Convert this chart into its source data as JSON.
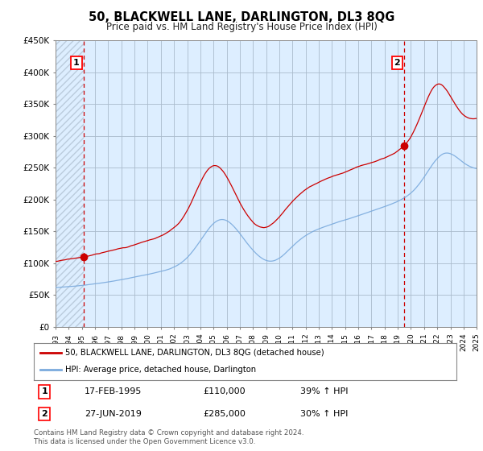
{
  "title": "50, BLACKWELL LANE, DARLINGTON, DL3 8QG",
  "subtitle": "Price paid vs. HM Land Registry's House Price Index (HPI)",
  "ylim": [
    0,
    450000
  ],
  "yticks": [
    0,
    50000,
    100000,
    150000,
    200000,
    250000,
    300000,
    350000,
    400000,
    450000
  ],
  "ytick_labels": [
    "£0",
    "£50K",
    "£100K",
    "£150K",
    "£200K",
    "£250K",
    "£300K",
    "£350K",
    "£400K",
    "£450K"
  ],
  "hpi_color": "#7aaadd",
  "price_color": "#cc0000",
  "dashed_line_color": "#cc0000",
  "point1_year": 1995.12,
  "point2_year": 2019.5,
  "point1_price": 110000,
  "point2_price": 285000,
  "legend_label1": "50, BLACKWELL LANE, DARLINGTON, DL3 8QG (detached house)",
  "legend_label2": "HPI: Average price, detached house, Darlington",
  "table_row1": [
    "1",
    "17-FEB-1995",
    "£110,000",
    "39% ↑ HPI"
  ],
  "table_row2": [
    "2",
    "27-JUN-2019",
    "£285,000",
    "30% ↑ HPI"
  ],
  "footer": "Contains HM Land Registry data © Crown copyright and database right 2024.\nThis data is licensed under the Open Government Licence v3.0.",
  "plot_bg_color": "#ddeeff",
  "hatch_color": "#bbccdd",
  "grid_color": "#aabbcc",
  "xlim_start": 1993,
  "xlim_end": 2025
}
